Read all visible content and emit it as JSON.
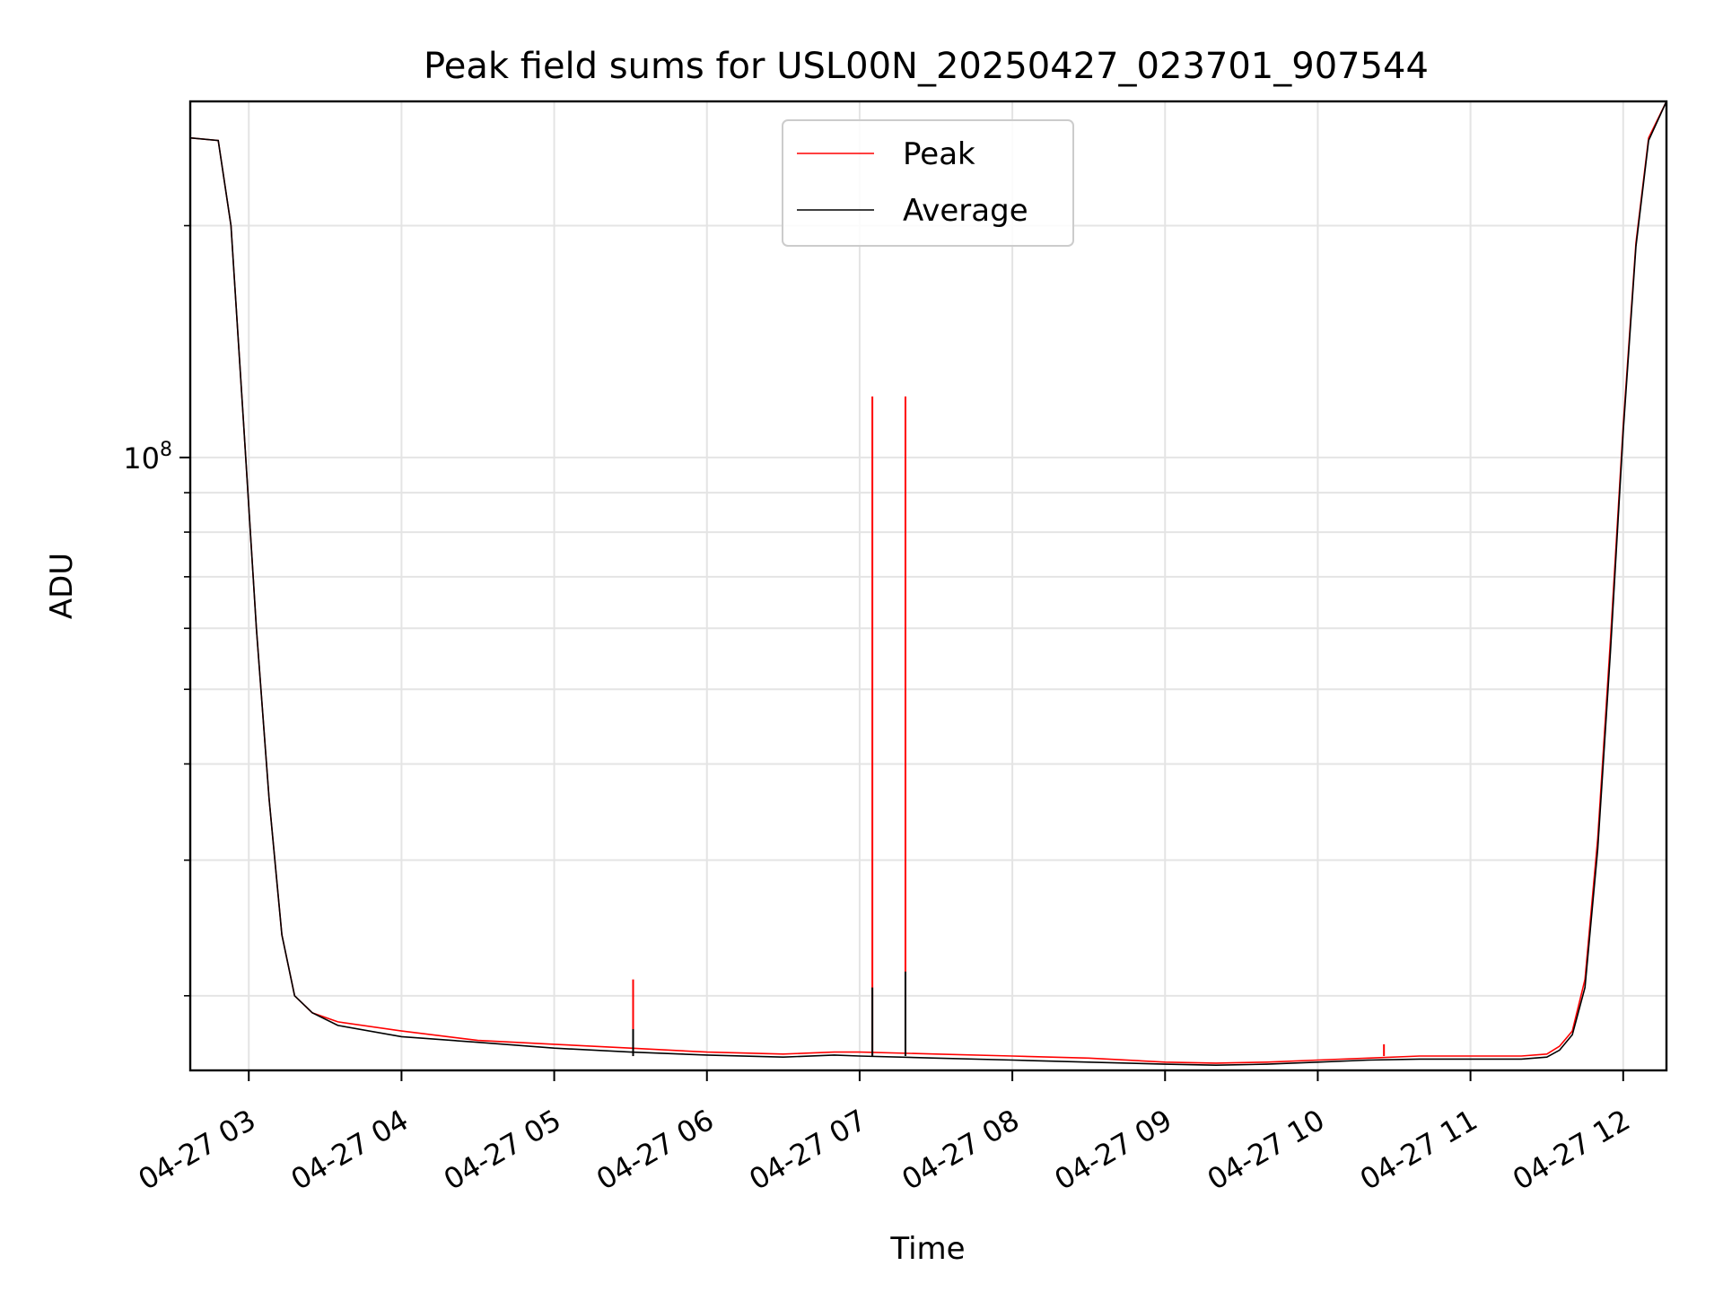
{
  "chart_data": {
    "type": "line",
    "title": "Peak field sums for USL00N_20250427_023701_907544",
    "xlabel": "Time",
    "ylabel": "ADU",
    "x_tick_labels": [
      "04-27 03",
      "04-27 04",
      "04-27 05",
      "04-27 06",
      "04-27 07",
      "04-27 08",
      "04-27 09",
      "04-27 10",
      "04-27 11",
      "04-27 12"
    ],
    "y_tick_labels": [
      {
        "base": "10",
        "exp": "8"
      }
    ],
    "y_scale": "log",
    "ylim": [
      16000000,
      290000000
    ],
    "xlim": [
      "2025-04-27 02:37",
      "2025-04-27 12:17"
    ],
    "grid": true,
    "legend": "top-center",
    "series": [
      {
        "name": "Peak",
        "color": "#ff0000",
        "x": [
          "02:37",
          "02:48",
          "02:53",
          "02:58",
          "03:03",
          "03:08",
          "03:13",
          "03:18",
          "03:25",
          "03:35",
          "04:00",
          "04:30",
          "05:00",
          "05:30",
          "06:00",
          "06:30",
          "06:50",
          "07:00",
          "07:30",
          "08:00",
          "08:30",
          "09:00",
          "09:20",
          "09:40",
          "10:00",
          "10:20",
          "10:40",
          "11:00",
          "11:20",
          "11:30",
          "11:35",
          "11:40",
          "11:45",
          "11:50",
          "11:55",
          "12:00",
          "12:05",
          "12:10",
          "12:17"
        ],
        "values": [
          260000000,
          258000000,
          200000000,
          110000000,
          60000000,
          36000000,
          24000000,
          20000000,
          19000000,
          18500000,
          18000000,
          17500000,
          17300000,
          17100000,
          16900000,
          16800000,
          16900000,
          16900000,
          16800000,
          16700000,
          16600000,
          16400000,
          16350000,
          16400000,
          16500000,
          16600000,
          16700000,
          16700000,
          16700000,
          16800000,
          17200000,
          18000000,
          21000000,
          32000000,
          58000000,
          110000000,
          190000000,
          260000000,
          290000000
        ]
      },
      {
        "name": "Average",
        "color": "#000000",
        "x": [
          "02:37",
          "02:48",
          "02:53",
          "02:58",
          "03:03",
          "03:08",
          "03:13",
          "03:18",
          "03:25",
          "03:35",
          "04:00",
          "04:30",
          "05:00",
          "05:30",
          "06:00",
          "06:30",
          "06:50",
          "07:00",
          "07:30",
          "08:00",
          "08:30",
          "09:00",
          "09:20",
          "09:40",
          "10:00",
          "10:20",
          "10:40",
          "11:00",
          "11:20",
          "11:30",
          "11:35",
          "11:40",
          "11:45",
          "11:50",
          "11:55",
          "12:00",
          "12:05",
          "12:10",
          "12:17"
        ],
        "values": [
          260000000,
          258000000,
          200000000,
          110000000,
          60000000,
          36000000,
          24000000,
          20000000,
          19000000,
          18300000,
          17700000,
          17400000,
          17100000,
          16900000,
          16750000,
          16650000,
          16750000,
          16700000,
          16600000,
          16500000,
          16400000,
          16300000,
          16250000,
          16300000,
          16400000,
          16500000,
          16550000,
          16550000,
          16550000,
          16650000,
          17000000,
          17800000,
          20500000,
          31000000,
          56000000,
          108000000,
          188000000,
          258000000,
          290000000
        ]
      }
    ],
    "annotations_spikes": [
      {
        "series": "Peak",
        "time": "05:31",
        "value": 21000000
      },
      {
        "series": "Average",
        "time": "05:31",
        "value": 18100000
      },
      {
        "series": "Peak",
        "time": "07:05",
        "value": 120000000
      },
      {
        "series": "Average",
        "time": "07:05",
        "value": 20500000
      },
      {
        "series": "Peak",
        "time": "07:18",
        "value": 120000000
      },
      {
        "series": "Average",
        "time": "07:18",
        "value": 21500000
      },
      {
        "series": "Peak",
        "time": "10:26",
        "value": 17300000
      }
    ]
  }
}
